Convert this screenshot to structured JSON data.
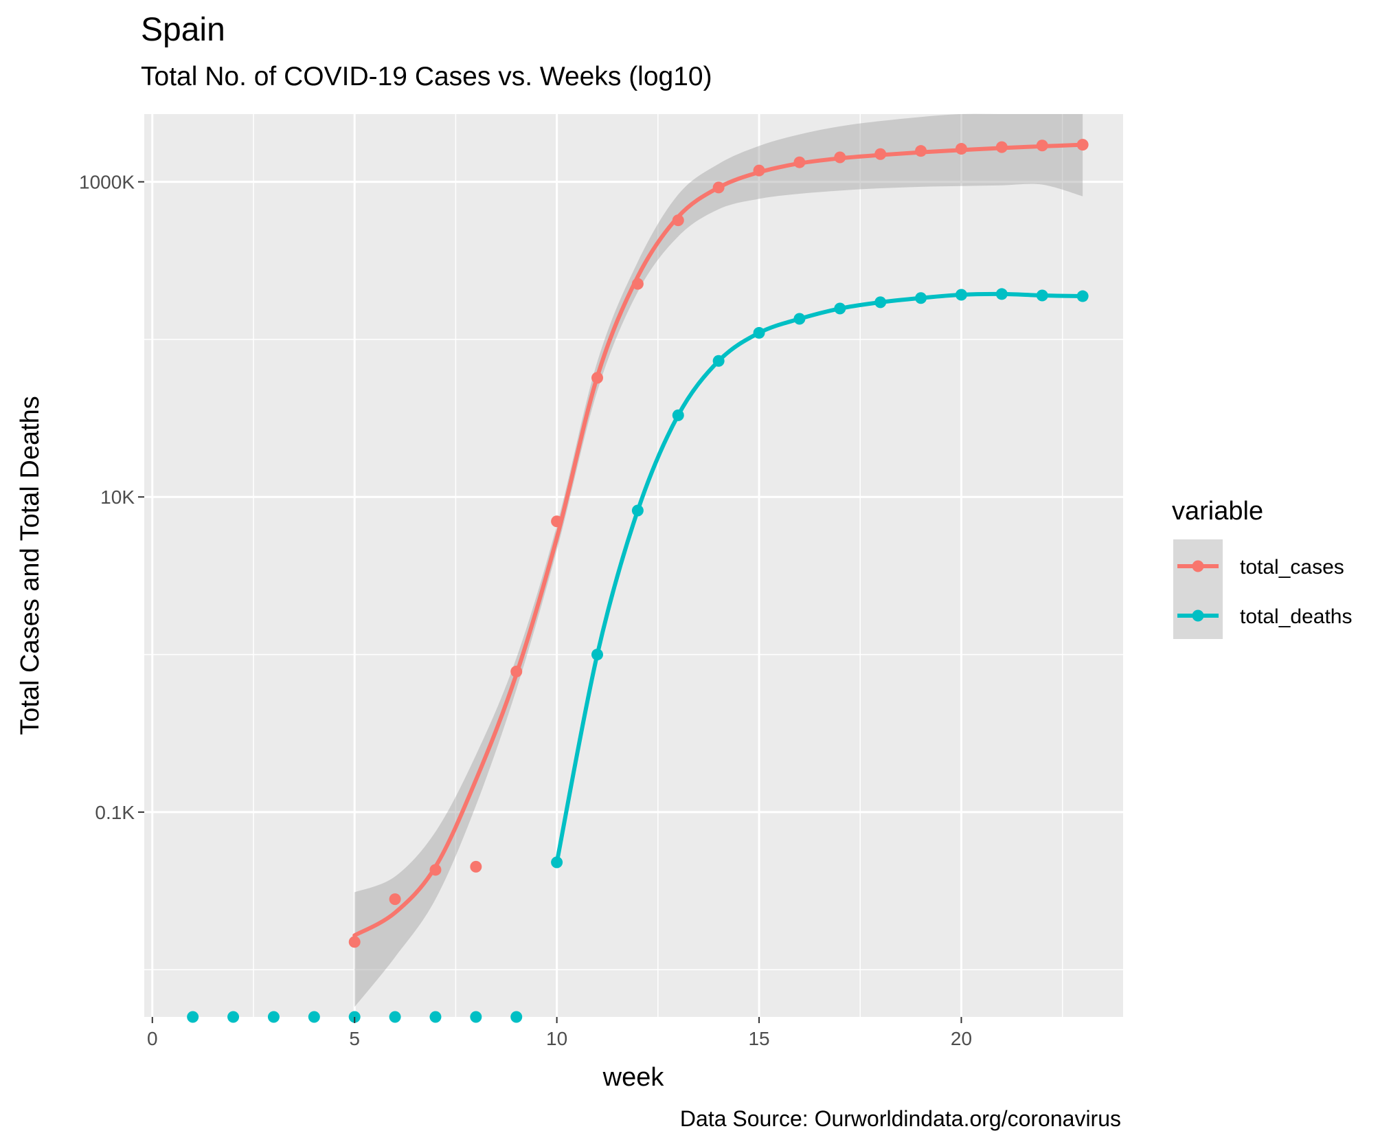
{
  "title": "Spain",
  "subtitle": "Total No. of COVID-19 Cases vs. Weeks (log10)",
  "caption": "Data Source: Ourworldindata.org/coronavirus",
  "chart_data": {
    "type": "scatter",
    "title": "Spain",
    "subtitle": "Total No. of COVID-19 Cases vs. Weeks (log10)",
    "xlabel": "week",
    "ylabel": "Total Cases and Total Deaths",
    "y_scale": "log10",
    "xlim": [
      -0.2,
      24.0
    ],
    "ylim_log10": [
      0.7,
      6.43
    ],
    "x_ticks": [
      0,
      5,
      10,
      15,
      20
    ],
    "x_tick_labels": [
      "0",
      "5",
      "10",
      "15",
      "20"
    ],
    "y_ticks": [
      100,
      10000,
      1000000
    ],
    "y_tick_labels": [
      "0.1K",
      "10K",
      "1000K"
    ],
    "grid": true,
    "smoothing": "loess with confidence band",
    "legend": {
      "title": "variable",
      "position": "right"
    },
    "series": [
      {
        "name": "total_cases",
        "color": "#F8766D",
        "x": [
          5,
          6,
          7,
          8,
          9,
          10,
          11,
          12,
          13,
          14,
          15,
          16,
          17,
          18,
          19,
          20,
          21,
          22,
          23
        ],
        "y": [
          15,
          28,
          43,
          45,
          780,
          7000,
          57000,
          225000,
          570000,
          920000,
          1180000,
          1330000,
          1430000,
          1500000,
          1570000,
          1620000,
          1660000,
          1700000,
          1720000
        ],
        "smooth_x": [
          5,
          6,
          7,
          8,
          9,
          10,
          11,
          12,
          13,
          14,
          15,
          16,
          17,
          18,
          19,
          20,
          21,
          22,
          23
        ],
        "smooth_y": [
          16.5,
          23,
          45,
          160,
          750,
          5500,
          58000,
          250000,
          600000,
          920000,
          1150000,
          1310000,
          1410000,
          1480000,
          1540000,
          1590000,
          1640000,
          1680000,
          1720000
        ],
        "band_lower": [
          5.8,
          12,
          28,
          110,
          600,
          4600,
          47000,
          200000,
          450000,
          670000,
          780000,
          840000,
          880000,
          910000,
          930000,
          940000,
          950000,
          960000,
          810000
        ],
        "band_upper": [
          31,
          39,
          75,
          230,
          950,
          6600,
          72000,
          310000,
          830000,
          1300000,
          1690000,
          2000000,
          2250000,
          2430000,
          2580000,
          2700000,
          2780000,
          2850000,
          3660000
        ]
      },
      {
        "name": "total_deaths",
        "color": "#00BFC4",
        "x": [
          1,
          2,
          3,
          4,
          5,
          6,
          7,
          8,
          9,
          10,
          11,
          12,
          13,
          14,
          15,
          16,
          17,
          18,
          19,
          20,
          21,
          22,
          23
        ],
        "y": [
          0,
          0,
          0,
          0,
          0,
          0,
          0,
          0,
          0,
          48,
          1000,
          8200,
          33000,
          73000,
          110000,
          135000,
          157000,
          172000,
          183000,
          192000,
          194000,
          190000,
          188000
        ],
        "smooth_x": [
          10,
          11,
          12,
          13,
          14,
          15,
          16,
          17,
          18,
          19,
          20,
          21,
          22,
          23
        ],
        "smooth_y": [
          48,
          1000,
          8200,
          33000,
          73000,
          110000,
          135000,
          157000,
          172000,
          183000,
          192000,
          194000,
          190000,
          188000
        ]
      }
    ]
  }
}
